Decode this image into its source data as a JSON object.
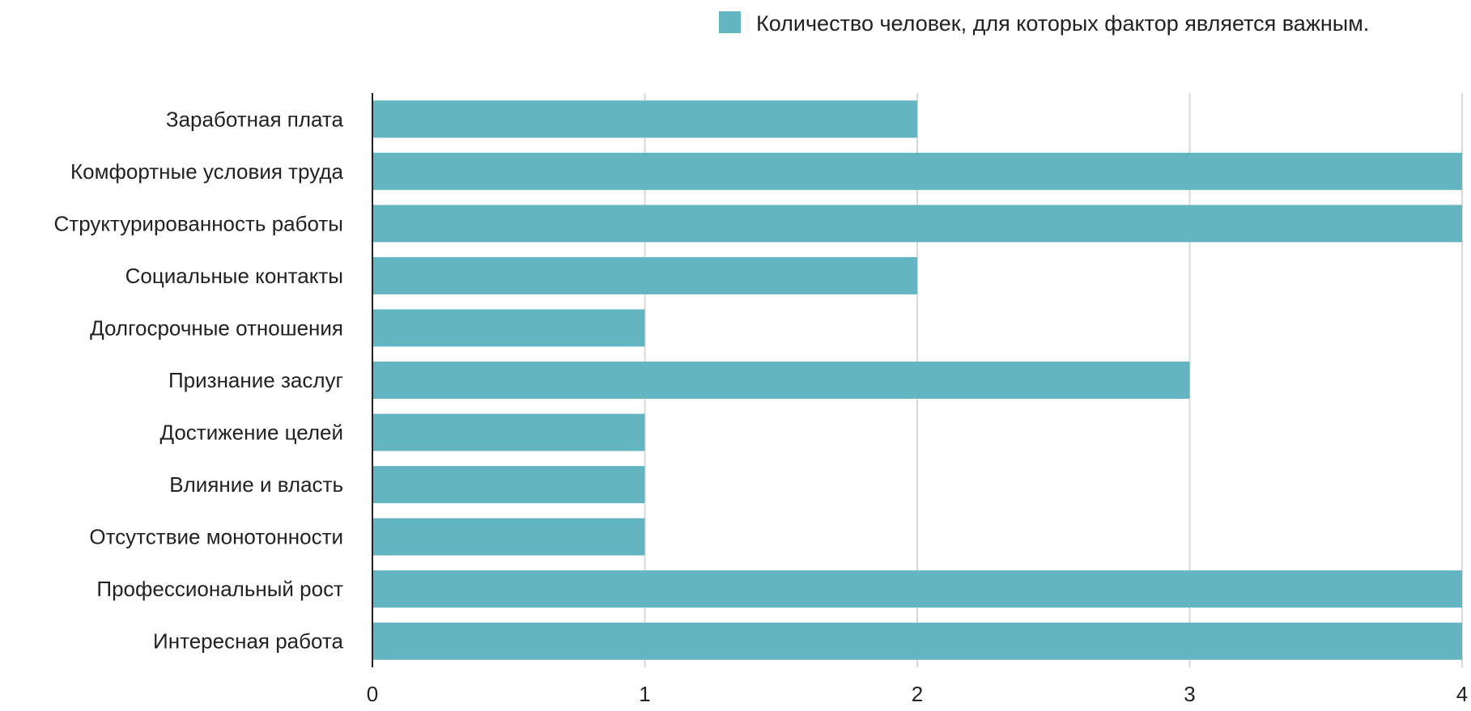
{
  "chart_data": {
    "type": "bar",
    "orientation": "horizontal",
    "categories": [
      "Заработная плата",
      "Комфортные условия труда",
      "Структурированность работы",
      "Социальные контакты",
      "Долгосрочные отношения",
      "Признание заслуг",
      "Достижение целей",
      "Влияние и власть",
      "Отсутствие монотонности",
      "Профессиональный рост",
      "Интересная работа"
    ],
    "series": [
      {
        "name": "Количество человек, для которых фактор является важным.",
        "values": [
          2,
          4,
          4,
          2,
          1,
          3,
          1,
          1,
          1,
          4,
          4
        ],
        "color": "#64b5c2"
      }
    ],
    "xlim": [
      0,
      4
    ],
    "ticks": [
      "0",
      "1",
      "2",
      "3",
      "4"
    ],
    "grid": true,
    "legend_position": "top-right"
  }
}
